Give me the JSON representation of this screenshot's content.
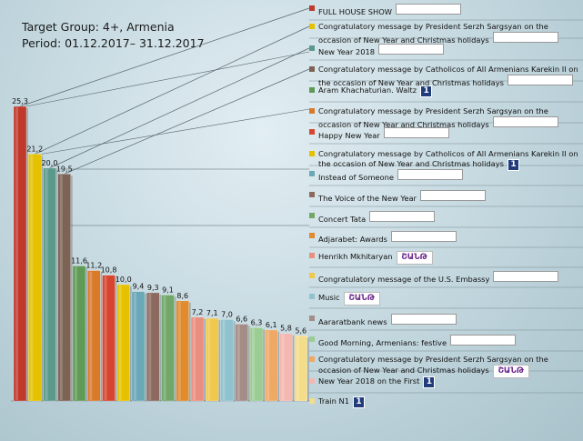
{
  "header": {
    "target_group": "Target Group: 4+, Armenia",
    "period": "Period: 01.12.2017– 31.12.2017"
  },
  "logos": {
    "armenia": {
      "icon": "armenia-tv-logo",
      "label": ""
    },
    "first": {
      "icon": "first-channel-logo",
      "label": "1"
    },
    "shant": {
      "icon": "shant-logo",
      "label": "ՇԱՆԹ"
    }
  },
  "chart_data": {
    "type": "bar",
    "title": "",
    "xlabel": "",
    "ylabel": "",
    "ylim": [
      0,
      27
    ],
    "legend_position": "right",
    "categories": [
      "FULL HOUSE SHOW",
      "Congratulatory message by President Serzh Sargsyan on the occasion of New Year and Christmas holidays",
      "New Year 2018",
      "Congratulatory message by Catholicos of All Armenians Karekin II on the occasion of New Year and Christmas holidays",
      "Aram Khachaturian. Waltz",
      "Congratulatory message by President Serzh Sargsyan on the occasion of New Year and Christmas holidays",
      "Happy New Year",
      "Congratulatory message by Catholicos of All Armenians Karekin II on the occasion of New Year and Christmas holidays",
      "Instead of Someone",
      "The Voice of the New Year",
      "Concert Tata",
      "Adjarabet: Awards",
      "Henrikh Mkhitaryan",
      "Congratulatory message of the U.S. Embassy",
      "Music",
      "Aararatbank news",
      "Good Morning, Armenians: festive",
      "Congratulatory message by President Serzh Sargsyan on the occasion of New Year and Christmas holidays",
      "New Year 2018 on the First",
      "Train N1"
    ],
    "values": [
      25.3,
      21.2,
      20.0,
      19.5,
      11.6,
      11.2,
      10.8,
      10.0,
      9.4,
      9.3,
      9.1,
      8.6,
      7.2,
      7.1,
      7.0,
      6.6,
      6.3,
      6.1,
      5.8,
      5.6
    ],
    "data_labels": [
      "25,3",
      "21,2",
      "20,0",
      "19,5",
      "11,6",
      "11,2",
      "10,8",
      "10,0",
      "9,4",
      "9,3",
      "9,1",
      "8,6",
      "7,2",
      "7,1",
      "7,0",
      "6,6",
      "6,3",
      "6,1",
      "5,8",
      "5,6"
    ],
    "channels": [
      "armenia",
      "armenia",
      "armenia",
      "armenia",
      "first",
      "armenia",
      "armenia",
      "first",
      "armenia",
      "armenia",
      "armenia",
      "armenia",
      "shant",
      "armenia",
      "shant",
      "armenia",
      "armenia",
      "shant",
      "first",
      "first"
    ],
    "colors": [
      "#c0392b",
      "#e5c100",
      "#5b9a8b",
      "#7d6355",
      "#5f9a56",
      "#d97a2b",
      "#d8452e",
      "#e5c100",
      "#6aa7b7",
      "#8c6a60",
      "#71a768",
      "#e08b2e",
      "#ea8f80",
      "#f0c84c",
      "#8fc2ce",
      "#a38d86",
      "#9bcc93",
      "#efa965",
      "#f5b7b1",
      "#f3dd8a"
    ]
  }
}
